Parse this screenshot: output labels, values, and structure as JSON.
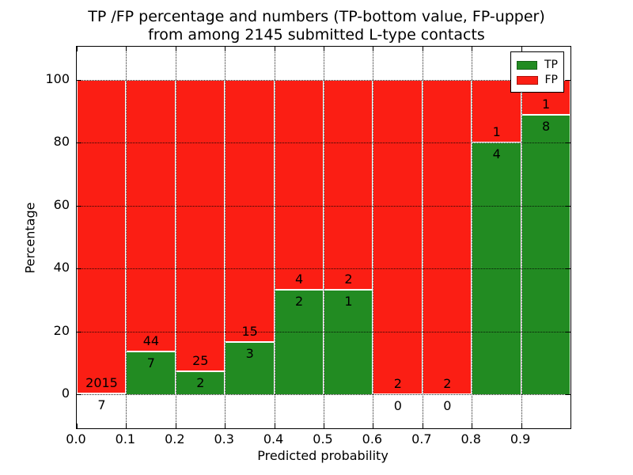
{
  "title": {
    "line1": "TP /FP percentage and numbers (TP-bottom value, FP-upper)",
    "line2": "from among 2145 submitted L-type contacts"
  },
  "axes": {
    "x_label": "Predicted probability",
    "y_label": "Percentage",
    "x_tick_labels": [
      "0.0",
      "0.1",
      "0.2",
      "0.3",
      "0.4",
      "0.5",
      "0.6",
      "0.7",
      "0.8",
      "0.9"
    ],
    "y_tick_labels": [
      "0",
      "20",
      "40",
      "60",
      "80",
      "100"
    ],
    "y_tick_values": [
      0,
      20,
      40,
      60,
      80,
      100
    ]
  },
  "legend": {
    "items": [
      {
        "label": "TP",
        "color": "#228b22"
      },
      {
        "label": "FP",
        "color": "#fb1e14"
      }
    ]
  },
  "colors": {
    "tp": "#228b22",
    "fp": "#fb1e14",
    "grid": "#000000",
    "background": "#ffffff"
  },
  "chart_data": {
    "type": "bar",
    "stacked": true,
    "normalized_to_percent": true,
    "title": "TP /FP percentage and numbers (TP-bottom value, FP-upper) from among 2145 submitted L-type contacts",
    "xlabel": "Predicted probability",
    "ylabel": "Percentage",
    "total_contacts": 2145,
    "bin_edges": [
      0.0,
      0.1,
      0.2,
      0.3,
      0.4,
      0.5,
      0.6,
      0.7,
      0.8,
      0.9,
      1.0
    ],
    "categories": [
      "0.0-0.1",
      "0.1-0.2",
      "0.2-0.3",
      "0.3-0.4",
      "0.4-0.5",
      "0.5-0.6",
      "0.6-0.7",
      "0.7-0.8",
      "0.8-0.9",
      "0.9-1.0"
    ],
    "series": [
      {
        "name": "TP",
        "counts": [
          7,
          7,
          2,
          3,
          2,
          1,
          0,
          0,
          4,
          8
        ]
      },
      {
        "name": "FP",
        "counts": [
          2015,
          44,
          25,
          15,
          4,
          2,
          2,
          2,
          1,
          1
        ]
      }
    ],
    "tp_percent": [
      0.35,
      13.73,
      7.41,
      16.67,
      33.33,
      33.33,
      0.0,
      0.0,
      80.0,
      88.89
    ],
    "ylim": [
      0,
      100
    ],
    "grid": "dotted",
    "legend_position": "upper right"
  }
}
